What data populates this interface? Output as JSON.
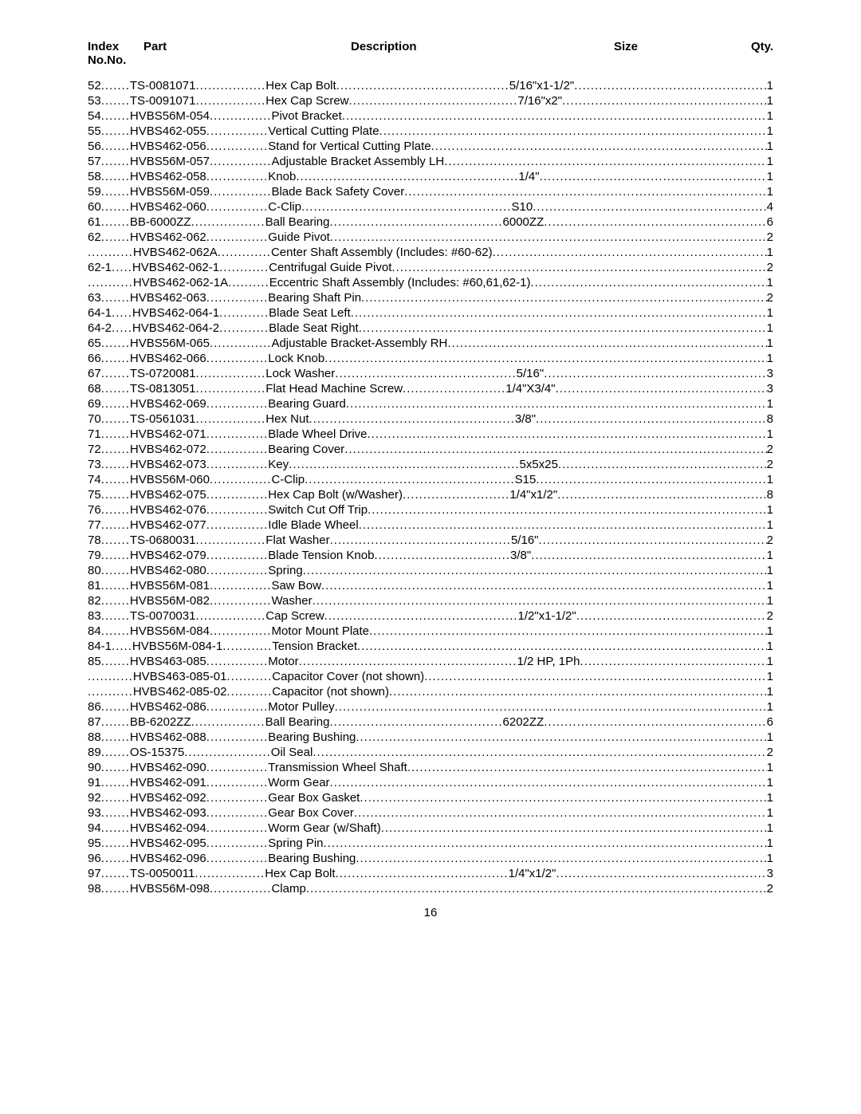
{
  "header": {
    "index_label_top": "Index",
    "index_label_bot": "No.",
    "part_label_top": "Part",
    "part_label_bot": "No.",
    "description_label": "Description",
    "size_label": "Size",
    "qty_label": "Qty."
  },
  "page_number": "16",
  "col_widths": {
    "index": 54,
    "part": 170,
    "desc": 306,
    "size": 130
  },
  "rows": [
    {
      "index": "52",
      "part": "TS-0081071",
      "desc": "Hex Cap Bolt",
      "size": "5/16\"x1-1/2\"",
      "qty": "1"
    },
    {
      "index": "53",
      "part": "TS-0091071",
      "desc": "Hex Cap Screw",
      "size": "7/16\"x2\"",
      "qty": "1"
    },
    {
      "index": "54",
      "part": "HVBS56M-054",
      "desc": "Pivot Bracket",
      "size": "",
      "qty": "1"
    },
    {
      "index": "55",
      "part": "HVBS462-055",
      "desc": "Vertical Cutting Plate",
      "size": "",
      "qty": "1"
    },
    {
      "index": "56",
      "part": "HVBS462-056",
      "desc": "Stand for Vertical Cutting Plate",
      "size": "",
      "qty": "1"
    },
    {
      "index": "57",
      "part": "HVBS56M-057",
      "desc": "Adjustable Bracket Assembly LH",
      "size": "",
      "qty": "1"
    },
    {
      "index": "58",
      "part": "HVBS462-058",
      "desc": "Knob",
      "size": "1/4\"",
      "qty": "1"
    },
    {
      "index": "59",
      "part": "HVBS56M-059",
      "desc": "Blade Back Safety Cover",
      "size": "",
      "qty": "1"
    },
    {
      "index": "60",
      "part": "HVBS462-060",
      "desc": "C-Clip",
      "size": "S10",
      "qty": "4"
    },
    {
      "index": "61",
      "part": "BB-6000ZZ",
      "desc": "Ball Bearing",
      "size": "6000ZZ",
      "qty": "6"
    },
    {
      "index": "62",
      "part": "HVBS462-062",
      "desc": "Guide Pivot",
      "size": "",
      "qty": "2"
    },
    {
      "index": "",
      "part": "HVBS462-062A",
      "desc": "Center Shaft Assembly (Includes: #60-62)",
      "size": "",
      "qty": "1",
      "no_size_gap": true
    },
    {
      "index": "62-1",
      "part": "HVBS462-062-1",
      "desc": "Centrifugal Guide Pivot",
      "size": "",
      "qty": "2"
    },
    {
      "index": "",
      "part": "HVBS462-062-1A",
      "desc": "Eccentric Shaft Assembly (Includes: #60,61,62-1)",
      "size": "",
      "qty": "1",
      "no_size_gap": true
    },
    {
      "index": "63",
      "part": "HVBS462-063",
      "desc": "Bearing Shaft Pin",
      "size": "",
      "qty": "2"
    },
    {
      "index": "64-1",
      "part": "HVBS462-064-1",
      "desc": "Blade Seat Left",
      "size": "",
      "qty": "1"
    },
    {
      "index": "64-2",
      "part": "HVBS462-064-2",
      "desc": "Blade Seat Right",
      "size": "",
      "qty": "1"
    },
    {
      "index": "65",
      "part": "HVBS56M-065",
      "desc": "Adjustable Bracket-Assembly RH",
      "size": "",
      "qty": "1"
    },
    {
      "index": "66",
      "part": "HVBS462-066",
      "desc": "Lock Knob",
      "size": "",
      "qty": "1"
    },
    {
      "index": "67",
      "part": "TS-0720081",
      "desc": "Lock Washer",
      "size": "5/16\"",
      "qty": "3"
    },
    {
      "index": "68",
      "part": "TS-0813051",
      "desc": "Flat Head Machine Screw",
      "size": "1/4\"X3/4\"",
      "qty": "3"
    },
    {
      "index": "69",
      "part": "HVBS462-069",
      "desc": "Bearing Guard",
      "size": "",
      "qty": "1"
    },
    {
      "index": "70",
      "part": "TS-0561031",
      "desc": "Hex Nut",
      "size": "3/8\"",
      "qty": "8"
    },
    {
      "index": "71",
      "part": "HVBS462-071",
      "desc": "Blade Wheel Drive",
      "size": "",
      "qty": "1"
    },
    {
      "index": "72",
      "part": "HVBS462-072",
      "desc": "Bearing Cover",
      "size": "",
      "qty": "2"
    },
    {
      "index": "73",
      "part": "HVBS462-073",
      "desc": "Key",
      "size": "5x5x25",
      "qty": "2"
    },
    {
      "index": "74",
      "part": "HVBS56M-060",
      "desc": "C-Clip",
      "size": "S15",
      "qty": "1"
    },
    {
      "index": "75",
      "part": "HVBS462-075",
      "desc": "Hex Cap Bolt (w/Washer)",
      "size": "1/4\"x1/2\"",
      "qty": "8"
    },
    {
      "index": "76",
      "part": "HVBS462-076",
      "desc": "Switch Cut Off Trip",
      "size": "",
      "qty": "1"
    },
    {
      "index": "77",
      "part": "HVBS462-077",
      "desc": "Idle Blade Wheel",
      "size": "",
      "qty": "1"
    },
    {
      "index": "78",
      "part": "TS-0680031",
      "desc": "Flat Washer",
      "size": "5/16\"",
      "qty": "2"
    },
    {
      "index": "79",
      "part": "HVBS462-079",
      "desc": "Blade Tension Knob",
      "size": "3/8\"",
      "qty": "1"
    },
    {
      "index": "80",
      "part": "HVBS462-080",
      "desc": "Spring",
      "size": "",
      "qty": "1"
    },
    {
      "index": "81",
      "part": "HVBS56M-081",
      "desc": "Saw Bow",
      "size": "",
      "qty": "1"
    },
    {
      "index": "82",
      "part": "HVBS56M-082",
      "desc": "Washer",
      "size": "",
      "qty": "1"
    },
    {
      "index": "83",
      "part": "TS-0070031",
      "desc": "Cap Screw",
      "size": "1/2\"x1-1/2\"",
      "qty": "2"
    },
    {
      "index": "84",
      "part": "HVBS56M-084",
      "desc": "Motor Mount Plate",
      "size": "",
      "qty": "1"
    },
    {
      "index": "84-1",
      "part": "HVBS56M-084-1",
      "desc": "Tension Bracket",
      "size": "",
      "qty": "1"
    },
    {
      "index": "85",
      "part": "HVBS463-085",
      "desc": "Motor",
      "size": "1/2 HP, 1Ph",
      "qty": "1"
    },
    {
      "index": "",
      "part": "HVBS463-085-01",
      "desc": "Capacitor Cover (not shown)",
      "size": "",
      "qty": "1"
    },
    {
      "index": "",
      "part": "HVBS462-085-02",
      "desc": "Capacitor (not shown)",
      "size": "",
      "qty": "1"
    },
    {
      "index": "86",
      "part": "HVBS462-086",
      "desc": "Motor Pulley",
      "size": "",
      "qty": "1"
    },
    {
      "index": "87",
      "part": "BB-6202ZZ",
      "desc": "Ball Bearing",
      "size": "6202ZZ",
      "qty": "6"
    },
    {
      "index": "88",
      "part": "HVBS462-088",
      "desc": "Bearing Bushing",
      "size": "",
      "qty": "1"
    },
    {
      "index": "89",
      "part": "OS-15375",
      "desc": "Oil Seal",
      "size": "",
      "qty": "2"
    },
    {
      "index": "90",
      "part": "HVBS462-090",
      "desc": "Transmission Wheel Shaft",
      "size": "",
      "qty": "1"
    },
    {
      "index": "91",
      "part": "HVBS462-091",
      "desc": "Worm Gear",
      "size": "",
      "qty": "1"
    },
    {
      "index": "92",
      "part": "HVBS462-092",
      "desc": "Gear Box Gasket",
      "size": "",
      "qty": "1"
    },
    {
      "index": "93",
      "part": "HVBS462-093",
      "desc": "Gear Box Cover",
      "size": "",
      "qty": "1"
    },
    {
      "index": "94",
      "part": "HVBS462-094",
      "desc": "Worm Gear (w/Shaft)",
      "size": "",
      "qty": "1"
    },
    {
      "index": "95",
      "part": "HVBS462-095",
      "desc": "Spring Pin",
      "size": "",
      "qty": "1"
    },
    {
      "index": "96",
      "part": "HVBS462-096",
      "desc": "Bearing Bushing",
      "size": "",
      "qty": "1"
    },
    {
      "index": "97",
      "part": "TS-0050011",
      "desc": "Hex Cap Bolt",
      "size": "1/4\"x1/2\"",
      "qty": "3"
    },
    {
      "index": "98",
      "part": "HVBS56M-098",
      "desc": "Clamp",
      "size": "",
      "qty": "2"
    }
  ]
}
